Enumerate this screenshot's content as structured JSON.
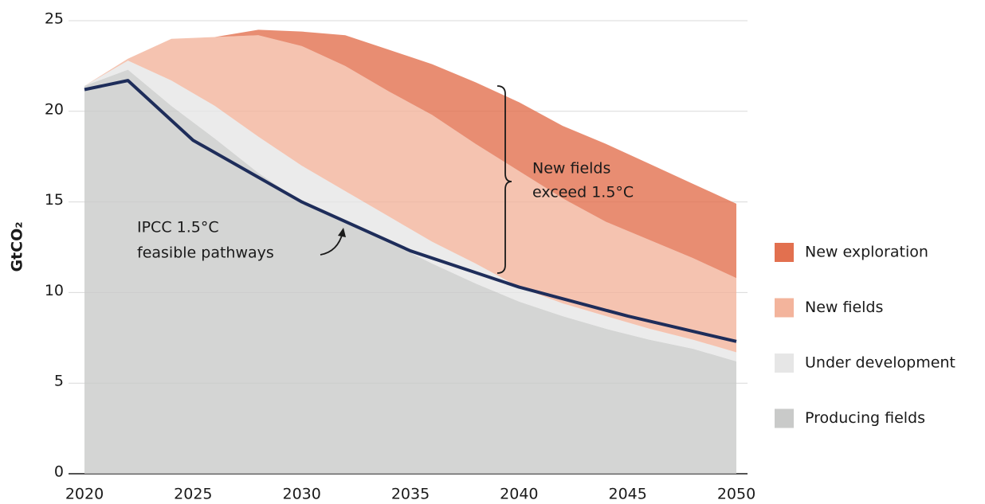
{
  "chart_data": {
    "type": "stacked-area",
    "y_label": "GtCO₂",
    "x": [
      2020,
      2022,
      2024,
      2026,
      2028,
      2030,
      2032,
      2034,
      2036,
      2038,
      2040,
      2042,
      2044,
      2046,
      2048,
      2050
    ],
    "series": [
      {
        "name": "Producing fields",
        "color": "#c9cac9",
        "values": [
          21.4,
          22.3,
          20.3,
          18.5,
          16.6,
          15.0,
          14.0,
          12.8,
          11.6,
          10.5,
          9.5,
          8.7,
          8.0,
          7.4,
          6.9,
          6.2
        ]
      },
      {
        "name": "Under development",
        "color": "#e6e6e6",
        "values": [
          0,
          0.5,
          1.4,
          1.8,
          2.0,
          2.0,
          1.6,
          1.4,
          1.2,
          1.1,
          0.8,
          0.7,
          0.7,
          0.6,
          0.5,
          0.5
        ]
      },
      {
        "name": "New fields",
        "color": "#f3b49c",
        "values": [
          0,
          0.1,
          2.3,
          3.8,
          5.6,
          6.6,
          6.9,
          6.9,
          7.0,
          6.6,
          6.4,
          5.8,
          5.2,
          4.9,
          4.5,
          4.1
        ]
      },
      {
        "name": "New exploration",
        "color": "#e2704f",
        "values": [
          0,
          0,
          0,
          0,
          0.3,
          0.8,
          1.7,
          2.3,
          2.8,
          3.4,
          3.8,
          4.0,
          4.3,
          4.2,
          4.1,
          4.1
        ]
      }
    ],
    "pathway": {
      "color": "#1e2d5a",
      "x": [
        2020,
        2022,
        2025,
        2030,
        2035,
        2040,
        2045,
        2050
      ],
      "values": [
        21.2,
        21.7,
        18.4,
        15.0,
        12.3,
        10.3,
        8.7,
        7.3
      ],
      "annotation": [
        "IPCC 1.5°C",
        "feasible pathways"
      ]
    },
    "gap_annotation": [
      "New fields",
      "exceed 1.5°C"
    ],
    "xlim": [
      2020,
      2050
    ],
    "xticks": [
      2020,
      2025,
      2030,
      2035,
      2040,
      2045,
      2050
    ],
    "ylim": [
      0,
      25
    ],
    "yticks": [
      0,
      5,
      10,
      15,
      20,
      25
    ],
    "grid": true,
    "legend": "right"
  }
}
